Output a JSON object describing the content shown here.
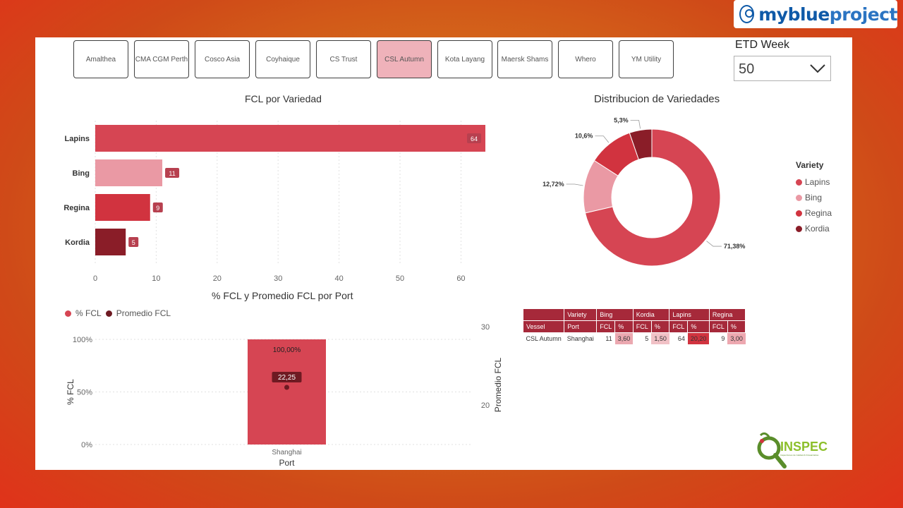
{
  "brand": {
    "name_bold": "myblue",
    "name_light": "project"
  },
  "vessel_tabs": [
    {
      "label": "Amalthea",
      "selected": false
    },
    {
      "label": "CMA CGM Perth",
      "selected": false
    },
    {
      "label": "Cosco Asia",
      "selected": false
    },
    {
      "label": "Coyhaique",
      "selected": false
    },
    {
      "label": "CS Trust",
      "selected": false
    },
    {
      "label": "CSL Autumn",
      "selected": true
    },
    {
      "label": "Kota Layang",
      "selected": false
    },
    {
      "label": "Maersk Shams",
      "selected": false
    },
    {
      "label": "Whero",
      "selected": false
    },
    {
      "label": "YM Utility",
      "selected": false
    }
  ],
  "etd_filter": {
    "title": "ETD Week",
    "value": "50"
  },
  "colors": {
    "lapins": "#d64553",
    "bing": "#ea99a4",
    "regina": "#d1333f",
    "kordia": "#8a1d28",
    "label_bg": "#b7404f",
    "header": "#a6293a"
  },
  "chart_data": [
    {
      "type": "bar",
      "title": "FCL por Variedad",
      "orientation": "horizontal",
      "categories": [
        "Lapins",
        "Bing",
        "Regina",
        "Kordia"
      ],
      "values": [
        64,
        11,
        9,
        5
      ],
      "xticks": [
        0,
        10,
        20,
        30,
        40,
        50,
        60
      ],
      "xlim": [
        0,
        64
      ]
    },
    {
      "type": "pie",
      "title": "Distribucion de Variedades",
      "donut": true,
      "labels": [
        "Lapins",
        "Bing",
        "Regina",
        "Kordia"
      ],
      "values": [
        71.38,
        12.72,
        10.6,
        5.3
      ],
      "value_labels": [
        "71,38%",
        "12,72%",
        "10,6%",
        "5,3%"
      ],
      "legend_title": "Variety"
    },
    {
      "type": "bar",
      "title": "% FCL y Promedio FCL por Port",
      "xlabel": "Port",
      "ylabel": "% FCL",
      "y2label": "Promedio FCL",
      "categories": [
        "Shanghai"
      ],
      "series": [
        {
          "name": "% FCL",
          "values": [
            100
          ],
          "value_labels": [
            "100,00%"
          ]
        },
        {
          "name": "Promedio FCL",
          "values": [
            22.25
          ],
          "value_labels": [
            "22,25"
          ]
        }
      ],
      "yticks": [
        "0%",
        "50%",
        "100%"
      ],
      "y2ticks": [
        "20",
        "30"
      ]
    }
  ],
  "matrix_table": {
    "header_row1": [
      "",
      "Variety",
      "Bing",
      "Kordia",
      "Lapins",
      "Regina"
    ],
    "header_row2": [
      "Vessel",
      "Port",
      "FCL",
      "%",
      "FCL",
      "%",
      "FCL",
      "%",
      "FCL",
      "%"
    ],
    "rows": [
      {
        "vessel": "CSL Autumn",
        "port": "Shanghai",
        "cells": [
          "11",
          "3,60",
          "5",
          "1,50",
          "64",
          "20,20",
          "9",
          "3,00"
        ]
      }
    ]
  },
  "inspec": {
    "text": "INSPEC",
    "tagline": "Inspecciones de Calidad & Fitosanitarias"
  }
}
